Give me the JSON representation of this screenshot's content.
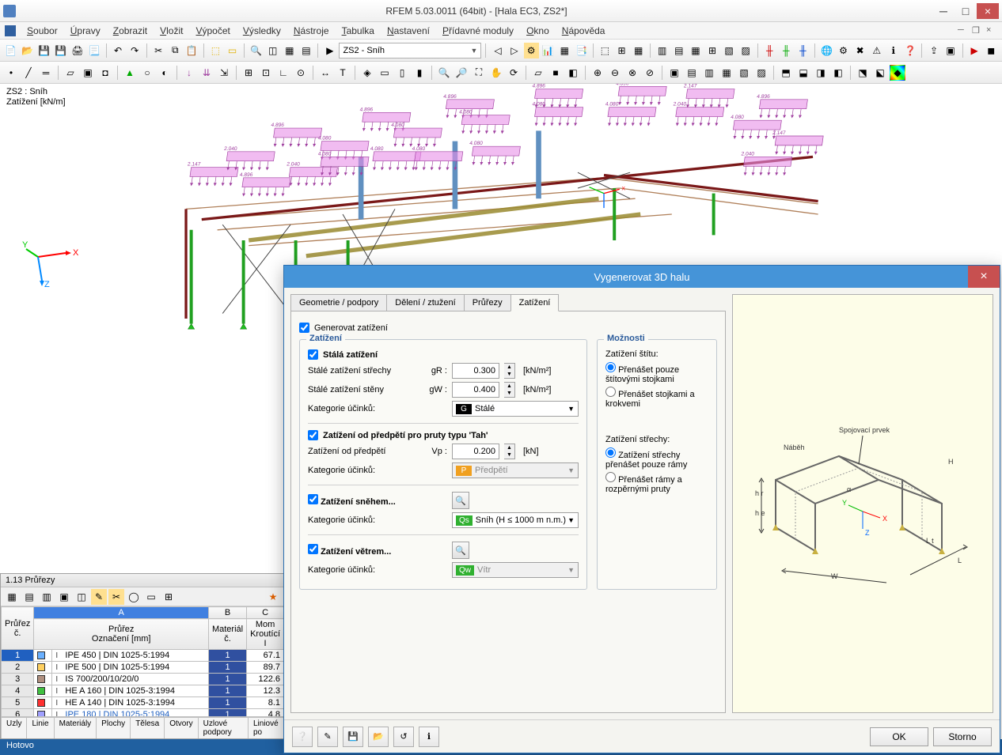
{
  "window": {
    "title": "RFEM 5.03.0011 (64bit) - [Hala EC3, ZS2*]"
  },
  "menu": [
    "Soubor",
    "Úpravy",
    "Zobrazit",
    "Vložit",
    "Výpočet",
    "Výsledky",
    "Nástroje",
    "Tabulka",
    "Nastavení",
    "Přídavné moduly",
    "Okno",
    "Nápověda"
  ],
  "loadcase_combo": "ZS2 - Sníh",
  "viewport": {
    "label1": "ZS2 : Sníh",
    "label2": "Zatížení [kN/m]",
    "load_values": [
      "4.896",
      "4.080",
      "4.896",
      "4.080",
      "4.896",
      "4.080",
      "4.896",
      "4.080",
      "4.896",
      "4.080",
      "2.147",
      "2.040",
      "4.896",
      "4.080",
      "2.147",
      "2.040",
      "2.147",
      "2.040",
      "4.896",
      "2.040",
      "4.080",
      "4.080",
      "4.080",
      "4.080"
    ],
    "colors": {
      "load": "#d070d0",
      "load_edge": "#a040a0",
      "col": "#20a020",
      "beam_dark": "#7a1818",
      "beam_tan": "#9a8a30",
      "brace": "#444",
      "purlin": "#b0805a"
    }
  },
  "bottom": {
    "title": "1.13 Průřezy",
    "headers": {
      "num": "Průřez\nč.",
      "A": "A",
      "name": "Průřez\nOznačení [mm]",
      "B": "B",
      "mat": "Materál\nč.",
      "C": "C",
      "mom": "Mom\nKroutící I"
    },
    "rows": [
      {
        "n": "1",
        "sel": true,
        "sw": "#6ab0ff",
        "name": "IPE 450 | DIN 1025-5:1994",
        "mat": "1",
        "mom": "67.1"
      },
      {
        "n": "2",
        "sel": false,
        "sw": "#ffd060",
        "name": "IPE 500 | DIN 1025-5:1994",
        "mat": "1",
        "mom": "89.7"
      },
      {
        "n": "3",
        "sel": false,
        "sw": "#b09080",
        "name": "IS 700/200/10/20/0",
        "mat": "1",
        "mom": "122.6"
      },
      {
        "n": "4",
        "sel": false,
        "sw": "#40c040",
        "name": "HE A 160 | DIN 1025-3:1994",
        "mat": "1",
        "mom": "12.3"
      },
      {
        "n": "5",
        "sel": false,
        "sw": "#ff3030",
        "name": "HE A 140 | DIN 1025-3:1994",
        "mat": "1",
        "mom": "8.1"
      },
      {
        "n": "6",
        "sel": false,
        "sw": "#a0a0ff",
        "name": "IPE 180 | DIN 1025-5:1994",
        "mat": "1",
        "mom": "4.8",
        "blue": true
      }
    ],
    "tabs": [
      "Uzly",
      "Linie",
      "Materiály",
      "Plochy",
      "Tělesa",
      "Otvory",
      "Uzlové podpory",
      "Liniové po"
    ]
  },
  "status": "Hotovo",
  "dialog": {
    "title": "Vygenerovat 3D halu",
    "tabs": [
      "Geometrie / podpory",
      "Dělení / ztužení",
      "Průřezy",
      "Zatížení"
    ],
    "active_tab": 3,
    "gen_load": "Generovat zatížení",
    "grp_load": "Zatížení",
    "grp_opts": "Možnosti",
    "perm": {
      "chk": "Stálá zatížení",
      "roof_lbl": "Stálé zatížení střechy",
      "roof_sym": "gR :",
      "roof_val": "0.300",
      "roof_unit": "[kN/m²]",
      "wall_lbl": "Stálé zatížení stěny",
      "wall_sym": "gW :",
      "wall_val": "0.400",
      "wall_unit": "[kN/m²]",
      "cat_lbl": "Kategorie účinků:",
      "cat_badge": "G",
      "cat_badge_bg": "#000000",
      "cat_val": "Stálé"
    },
    "prestress": {
      "chk": "Zatížení od předpětí pro pruty typu 'Tah'",
      "lbl": "Zatížení od předpětí",
      "sym": "Vp :",
      "val": "0.200",
      "unit": "[kN]",
      "cat_lbl": "Kategorie účinků:",
      "cat_badge": "P",
      "cat_badge_bg": "#f0a020",
      "cat_val": "Předpětí"
    },
    "snow": {
      "chk": "Zatížení sněhem...",
      "cat_lbl": "Kategorie účinků:",
      "cat_badge": "Qs",
      "cat_badge_bg": "#30b030",
      "cat_val": "Sníh (H ≤ 1000 m n.m.)"
    },
    "wind": {
      "chk": "Zatížení větrem...",
      "cat_lbl": "Kategorie účinků:",
      "cat_badge": "Qw",
      "cat_badge_bg": "#30b030",
      "cat_val": "Vítr"
    },
    "opts": {
      "gable_hdr": "Zatížení štítu:",
      "gable_r1": "Přenášet pouze štítovými stojkami",
      "gable_r2": "Přenášet stojkami a krokvemi",
      "roof_hdr": "Zatížení střechy:",
      "roof_r1": "Zatížení střechy přenášet pouze rámy",
      "roof_r2": "Přenášet rámy a rozpěrnými pruty"
    },
    "preview_labels": {
      "top": "Spojovací prvek",
      "nab": "Náběh",
      "H": "H",
      "hr": "h r",
      "he": "h e",
      "Lt": "L t",
      "L": "L",
      "W": "W",
      "alpha": "α"
    },
    "footer": {
      "ok": "OK",
      "cancel": "Storno"
    }
  }
}
